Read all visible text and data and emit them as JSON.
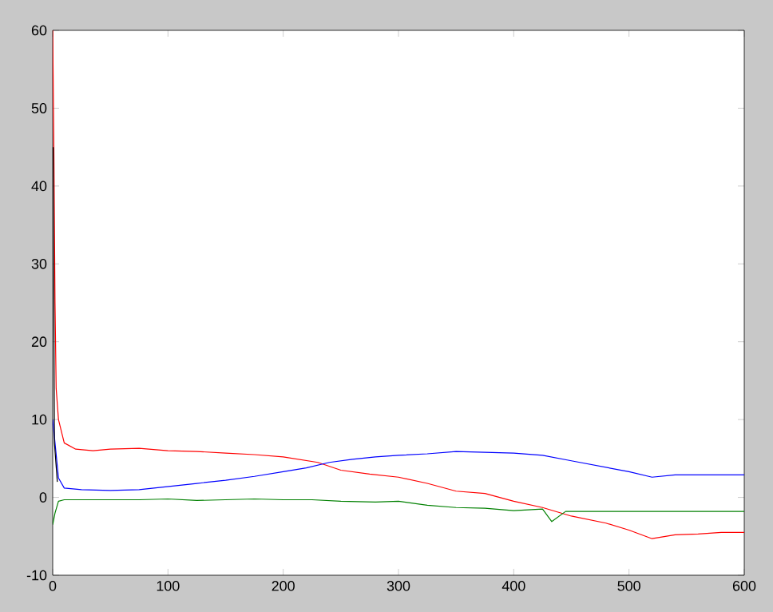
{
  "chart_data": {
    "type": "line",
    "xlim": [
      0,
      600
    ],
    "ylim": [
      -10,
      60
    ],
    "xticks": [
      0,
      100,
      200,
      300,
      400,
      500,
      600
    ],
    "yticks": [
      -10,
      0,
      10,
      20,
      30,
      40,
      50,
      60
    ],
    "grid": false,
    "marker": "none",
    "line_style": "solid",
    "series": [
      {
        "color": "#ff0000",
        "x": [
          0,
          1,
          2,
          3,
          5,
          10,
          20,
          35,
          50,
          75,
          100,
          125,
          150,
          175,
          200,
          230,
          250,
          275,
          300,
          325,
          350,
          375,
          400,
          425,
          450,
          480,
          500,
          520,
          540,
          560,
          580,
          600
        ],
        "values": [
          60,
          45,
          25,
          14,
          10,
          7,
          6.2,
          6,
          6.2,
          6.3,
          6,
          5.9,
          5.7,
          5.5,
          5.2,
          4.5,
          3.5,
          3,
          2.6,
          1.8,
          0.8,
          0.5,
          -0.5,
          -1.3,
          -2.4,
          -3.3,
          -4.2,
          -5.3,
          -4.8,
          -4.7,
          -4.5,
          -4.5
        ]
      },
      {
        "color": "#0000ff",
        "x": [
          0,
          2,
          5,
          10,
          25,
          50,
          75,
          100,
          125,
          150,
          175,
          200,
          220,
          240,
          260,
          280,
          300,
          325,
          350,
          375,
          400,
          425,
          450,
          475,
          500,
          520,
          540,
          560,
          580,
          600
        ],
        "values": [
          10,
          7,
          2.5,
          1.2,
          1,
          0.9,
          1,
          1.4,
          1.8,
          2.2,
          2.7,
          3.3,
          3.8,
          4.5,
          4.9,
          5.2,
          5.4,
          5.6,
          5.9,
          5.8,
          5.7,
          5.4,
          4.7,
          4,
          3.3,
          2.6,
          2.9,
          2.9,
          2.9,
          2.9
        ]
      },
      {
        "color": "#008000",
        "x": [
          0,
          2,
          5,
          10,
          25,
          50,
          75,
          100,
          125,
          150,
          175,
          200,
          225,
          250,
          280,
          300,
          325,
          350,
          375,
          400,
          425,
          433,
          445,
          475,
          500,
          550,
          600
        ],
        "values": [
          -3.5,
          -2,
          -0.5,
          -0.3,
          -0.3,
          -0.3,
          -0.3,
          -0.2,
          -0.4,
          -0.3,
          -0.2,
          -0.3,
          -0.3,
          -0.5,
          -0.6,
          -0.5,
          -1,
          -1.3,
          -1.4,
          -1.7,
          -1.5,
          -3.1,
          -1.8,
          -1.8,
          -1.8,
          -1.8,
          -1.8
        ]
      },
      {
        "color": "#000000",
        "x": [
          0.5,
          1.5,
          4
        ],
        "values": [
          45,
          7,
          2
        ]
      }
    ]
  }
}
